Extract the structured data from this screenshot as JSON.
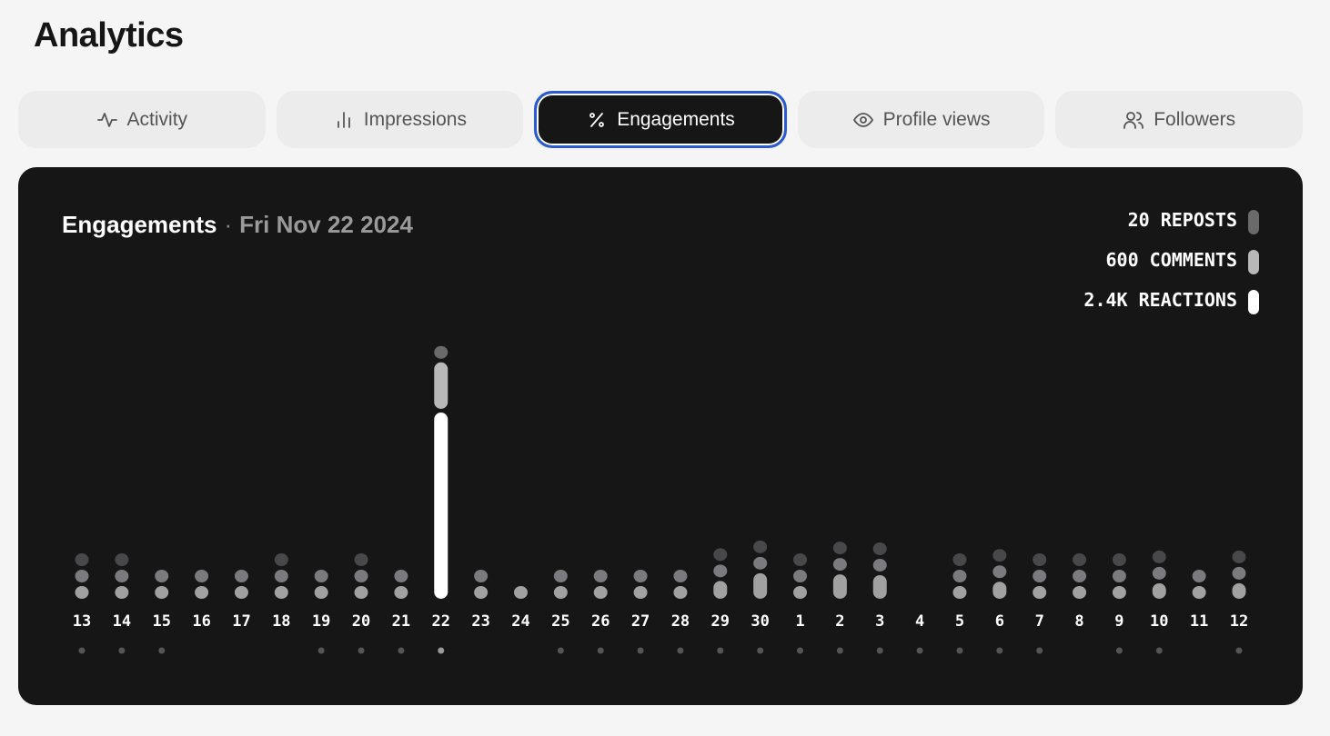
{
  "page_title": "Analytics",
  "tabs": [
    {
      "label": "Activity",
      "icon": "activity-icon",
      "active": false
    },
    {
      "label": "Impressions",
      "icon": "bar-chart-icon",
      "active": false
    },
    {
      "label": "Engagements",
      "icon": "percent-icon",
      "active": true
    },
    {
      "label": "Profile views",
      "icon": "eye-icon",
      "active": false
    },
    {
      "label": "Followers",
      "icon": "users-icon",
      "active": false
    }
  ],
  "card": {
    "title": "Engagements",
    "separator": "·",
    "date": "Fri Nov 22 2024"
  },
  "legend": [
    {
      "text": "20 REPOSTS",
      "color": "#6a6a6a"
    },
    {
      "text": "600 COMMENTS",
      "color": "#b8b8b8"
    },
    {
      "text": "2.4K REACTIONS",
      "color": "#ffffff"
    }
  ],
  "colors": {
    "reposts": "#48484b",
    "comments": "#7a7a7f",
    "reactions": "#a0a1a0",
    "selected_reposts": "#6a6a6a",
    "selected_comments": "#b8b8b8",
    "selected_reactions": "#ffffff",
    "accent": "#2a5bd0"
  },
  "chart_data": {
    "type": "bar",
    "stacked": true,
    "selected": "22",
    "categories": [
      "13",
      "14",
      "15",
      "16",
      "17",
      "18",
      "19",
      "20",
      "21",
      "22",
      "23",
      "24",
      "25",
      "26",
      "27",
      "28",
      "29",
      "30",
      "1",
      "2",
      "3",
      "4",
      "5",
      "6",
      "7",
      "8",
      "9",
      "10",
      "11",
      "12"
    ],
    "series": [
      {
        "name": "Reactions",
        "values": [
          100,
          100,
          100,
          100,
          100,
          100,
          100,
          100,
          100,
          2400,
          100,
          100,
          100,
          100,
          100,
          100,
          230,
          330,
          100,
          315,
          305,
          0,
          100,
          220,
          100,
          100,
          100,
          200,
          100,
          200
        ]
      },
      {
        "name": "Comments",
        "values": [
          40,
          40,
          40,
          40,
          40,
          40,
          40,
          40,
          40,
          600,
          40,
          0,
          40,
          40,
          40,
          40,
          40,
          40,
          40,
          40,
          40,
          0,
          40,
          40,
          40,
          40,
          40,
          40,
          40,
          40
        ]
      },
      {
        "name": "Reposts",
        "values": [
          3,
          3,
          0,
          0,
          0,
          3,
          0,
          3,
          0,
          20,
          0,
          0,
          0,
          0,
          0,
          0,
          3,
          3,
          3,
          3,
          3,
          0,
          3,
          3,
          3,
          3,
          3,
          3,
          0,
          3
        ]
      }
    ],
    "post_markers": [
      true,
      true,
      true,
      false,
      false,
      false,
      true,
      true,
      true,
      true,
      false,
      false,
      true,
      true,
      true,
      true,
      true,
      true,
      true,
      true,
      true,
      true,
      true,
      true,
      true,
      false,
      true,
      true,
      false,
      true
    ]
  }
}
